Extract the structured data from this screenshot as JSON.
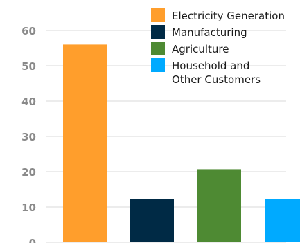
{
  "chart_data": {
    "type": "bar",
    "title": "",
    "xlabel": "",
    "ylabel": "",
    "ylim": [
      0,
      60
    ],
    "yticks": [
      0,
      10,
      20,
      30,
      40,
      50,
      60
    ],
    "grid": true,
    "legend_position": "top-right",
    "categories": [
      "Electricity Generation",
      "Manufacturing",
      "Agriculture",
      "Household and Other Customers"
    ],
    "values": [
      56,
      12.3,
      20.7,
      12.3
    ],
    "colors": [
      "#ff9e2c",
      "#002a45",
      "#4e8a33",
      "#00aaff"
    ],
    "legend": [
      {
        "lines": [
          "Electricity Generation"
        ],
        "color": "#ff9e2c"
      },
      {
        "lines": [
          "Manufacturing"
        ],
        "color": "#002a45"
      },
      {
        "lines": [
          "Agriculture"
        ],
        "color": "#4e8a33"
      },
      {
        "lines": [
          "Household and",
          "Other Customers"
        ],
        "color": "#00aaff"
      }
    ]
  }
}
